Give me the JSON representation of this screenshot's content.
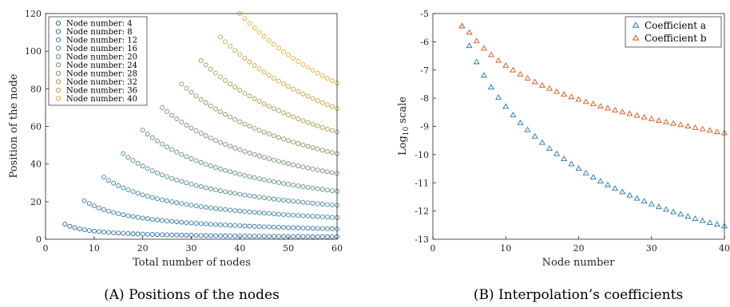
{
  "chart_data": [
    {
      "type": "scatter",
      "xlabel": "Total number of nodes",
      "ylabel": "Position of the node",
      "xlim": [
        0,
        60
      ],
      "ylim": [
        0,
        120
      ],
      "xticks": [
        "0",
        "10",
        "20",
        "30",
        "40",
        "50",
        "60"
      ],
      "yticks": [
        "0",
        "20",
        "40",
        "60",
        "80",
        "100",
        "120"
      ],
      "legend_position": "top-left",
      "series": [
        {
          "name": "Node number: 4",
          "node": 4,
          "color": "#2b6aa8",
          "x_start": 4,
          "x_end": 60,
          "y_start": 8.0,
          "y_end": 1.3
        },
        {
          "name": "Node number: 8",
          "node": 8,
          "color": "#2f78a6",
          "x_start": 8,
          "x_end": 60,
          "y_start": 20.5,
          "y_end": 5.5
        },
        {
          "name": "Node number: 12",
          "node": 12,
          "color": "#3a82a0",
          "x_start": 12,
          "x_end": 60,
          "y_start": 33.0,
          "y_end": 11.5
        },
        {
          "name": "Node number: 16",
          "node": 16,
          "color": "#4a8a90",
          "x_start": 16,
          "x_end": 60,
          "y_start": 45.5,
          "y_end": 18.0
        },
        {
          "name": "Node number: 20",
          "node": 20,
          "color": "#5d8e7c",
          "x_start": 20,
          "x_end": 60,
          "y_start": 58.0,
          "y_end": 25.5
        },
        {
          "name": "Node number: 24",
          "node": 24,
          "color": "#70906a",
          "x_start": 24,
          "x_end": 60,
          "y_start": 70.0,
          "y_end": 35.0
        },
        {
          "name": "Node number: 28",
          "node": 28,
          "color": "#8a9358",
          "x_start": 28,
          "x_end": 60,
          "y_start": 82.5,
          "y_end": 45.5
        },
        {
          "name": "Node number: 32",
          "node": 32,
          "color": "#a89a45",
          "x_start": 32,
          "x_end": 60,
          "y_start": 95.0,
          "y_end": 57.0
        },
        {
          "name": "Node number: 36",
          "node": 36,
          "color": "#c9a235",
          "x_start": 36,
          "x_end": 60,
          "y_start": 107.5,
          "y_end": 69.5
        },
        {
          "name": "Node number: 40",
          "node": 40,
          "color": "#e5ac22",
          "x_start": 40,
          "x_end": 60,
          "y_start": 120.0,
          "y_end": 83.0
        }
      ]
    },
    {
      "type": "scatter",
      "xlabel": "Node number",
      "ylabel": "Log",
      "ylabel_sub": "10",
      "ylabel_rest": " scale",
      "xlim": [
        0,
        40
      ],
      "ylim": [
        -13,
        -5
      ],
      "xticks": [
        "0",
        "10",
        "20",
        "30",
        "40"
      ],
      "yticks": [
        "-13",
        "-12",
        "-11",
        "-10",
        "-9",
        "-8",
        "-7",
        "-6",
        "-5"
      ],
      "legend_position": "top-right",
      "x": [
        4,
        5,
        6,
        7,
        8,
        9,
        10,
        11,
        12,
        13,
        14,
        15,
        16,
        17,
        18,
        19,
        20,
        21,
        22,
        23,
        24,
        25,
        26,
        27,
        28,
        29,
        30,
        31,
        32,
        33,
        34,
        35,
        36,
        37,
        38,
        39,
        40
      ],
      "series": [
        {
          "name": "Coefficient a",
          "color": "#1f77b4",
          "values": [
            -5.45,
            -6.15,
            -6.72,
            -7.2,
            -7.62,
            -7.98,
            -8.3,
            -8.6,
            -8.88,
            -9.13,
            -9.36,
            -9.58,
            -9.79,
            -9.98,
            -10.16,
            -10.34,
            -10.5,
            -10.66,
            -10.81,
            -10.95,
            -11.08,
            -11.21,
            -11.33,
            -11.45,
            -11.56,
            -11.66,
            -11.76,
            -11.86,
            -11.95,
            -12.04,
            -12.12,
            -12.2,
            -12.28,
            -12.35,
            -12.42,
            -12.48,
            -12.54
          ]
        },
        {
          "name": "Coefficient b",
          "color": "#d95319",
          "values": [
            -5.45,
            -5.68,
            -5.98,
            -6.24,
            -6.47,
            -6.67,
            -6.85,
            -7.01,
            -7.16,
            -7.3,
            -7.43,
            -7.55,
            -7.66,
            -7.77,
            -7.87,
            -7.96,
            -8.05,
            -8.13,
            -8.21,
            -8.29,
            -8.36,
            -8.43,
            -8.5,
            -8.56,
            -8.62,
            -8.68,
            -8.74,
            -8.8,
            -8.85,
            -8.9,
            -8.95,
            -9.0,
            -9.05,
            -9.1,
            -9.15,
            -9.2,
            -9.24
          ]
        }
      ]
    }
  ],
  "captions": {
    "left": "(A) Positions of the nodes",
    "right": "(B) Interpolation’s coefficients"
  }
}
